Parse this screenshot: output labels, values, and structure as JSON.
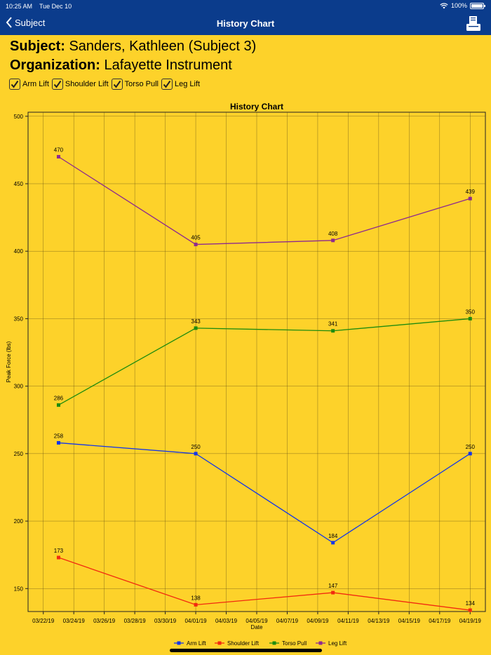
{
  "status_bar": {
    "time": "10:25 AM",
    "date": "Tue Dec 10",
    "battery": "100%"
  },
  "nav": {
    "back_label": "Subject",
    "title": "History Chart"
  },
  "header": {
    "subject_label": "Subject:",
    "subject_value": "Sanders, Kathleen (Subject 3)",
    "organization_label": "Organization:",
    "organization_value": "Lafayette Instrument"
  },
  "toggles": [
    {
      "label": "Arm Lift",
      "checked": true
    },
    {
      "label": "Shoulder Lift",
      "checked": true
    },
    {
      "label": "Torso Pull",
      "checked": true
    },
    {
      "label": "Leg Lift",
      "checked": true
    }
  ],
  "chart_data": {
    "type": "line",
    "title": "History Chart",
    "xlabel": "Date",
    "ylabel": "Peak Force (lbs)",
    "ylim": [
      133,
      503
    ],
    "yticks": [
      150,
      200,
      250,
      300,
      350,
      400,
      450,
      500
    ],
    "xlim": [
      "2019-03-21",
      "2019-04-20"
    ],
    "x_tick_labels": [
      "03/22/19",
      "03/24/19",
      "03/26/19",
      "03/28/19",
      "03/30/19",
      "04/01/19",
      "04/03/19",
      "04/05/19",
      "04/07/19",
      "04/09/19",
      "04/11/19",
      "04/13/19",
      "04/15/19",
      "04/17/19",
      "04/19/19"
    ],
    "x_ticks": [
      "2019-03-22",
      "2019-03-24",
      "2019-03-26",
      "2019-03-28",
      "2019-03-30",
      "2019-04-01",
      "2019-04-03",
      "2019-04-05",
      "2019-04-07",
      "2019-04-09",
      "2019-04-11",
      "2019-04-13",
      "2019-04-15",
      "2019-04-17",
      "2019-04-19"
    ],
    "x": [
      "2019-03-23",
      "2019-04-01",
      "2019-04-10",
      "2019-04-19"
    ],
    "grid": true,
    "legend_position": "bottom",
    "series": [
      {
        "name": "Arm Lift",
        "color": "#1436E8",
        "values": [
          258,
          250,
          184,
          250
        ]
      },
      {
        "name": "Shoulder Lift",
        "color": "#F2290F",
        "x": [
          "2019-03-23",
          "2019-04-01",
          "2019-04-10",
          "2019-04-19"
        ],
        "values": [
          173,
          138,
          147,
          134
        ]
      },
      {
        "name": "Torso Pull",
        "color": "#1E8C0E",
        "values": [
          286,
          343,
          341,
          350
        ]
      },
      {
        "name": "Leg Lift",
        "color": "#8E2A8E",
        "values": [
          470,
          405,
          408,
          439
        ]
      }
    ]
  }
}
